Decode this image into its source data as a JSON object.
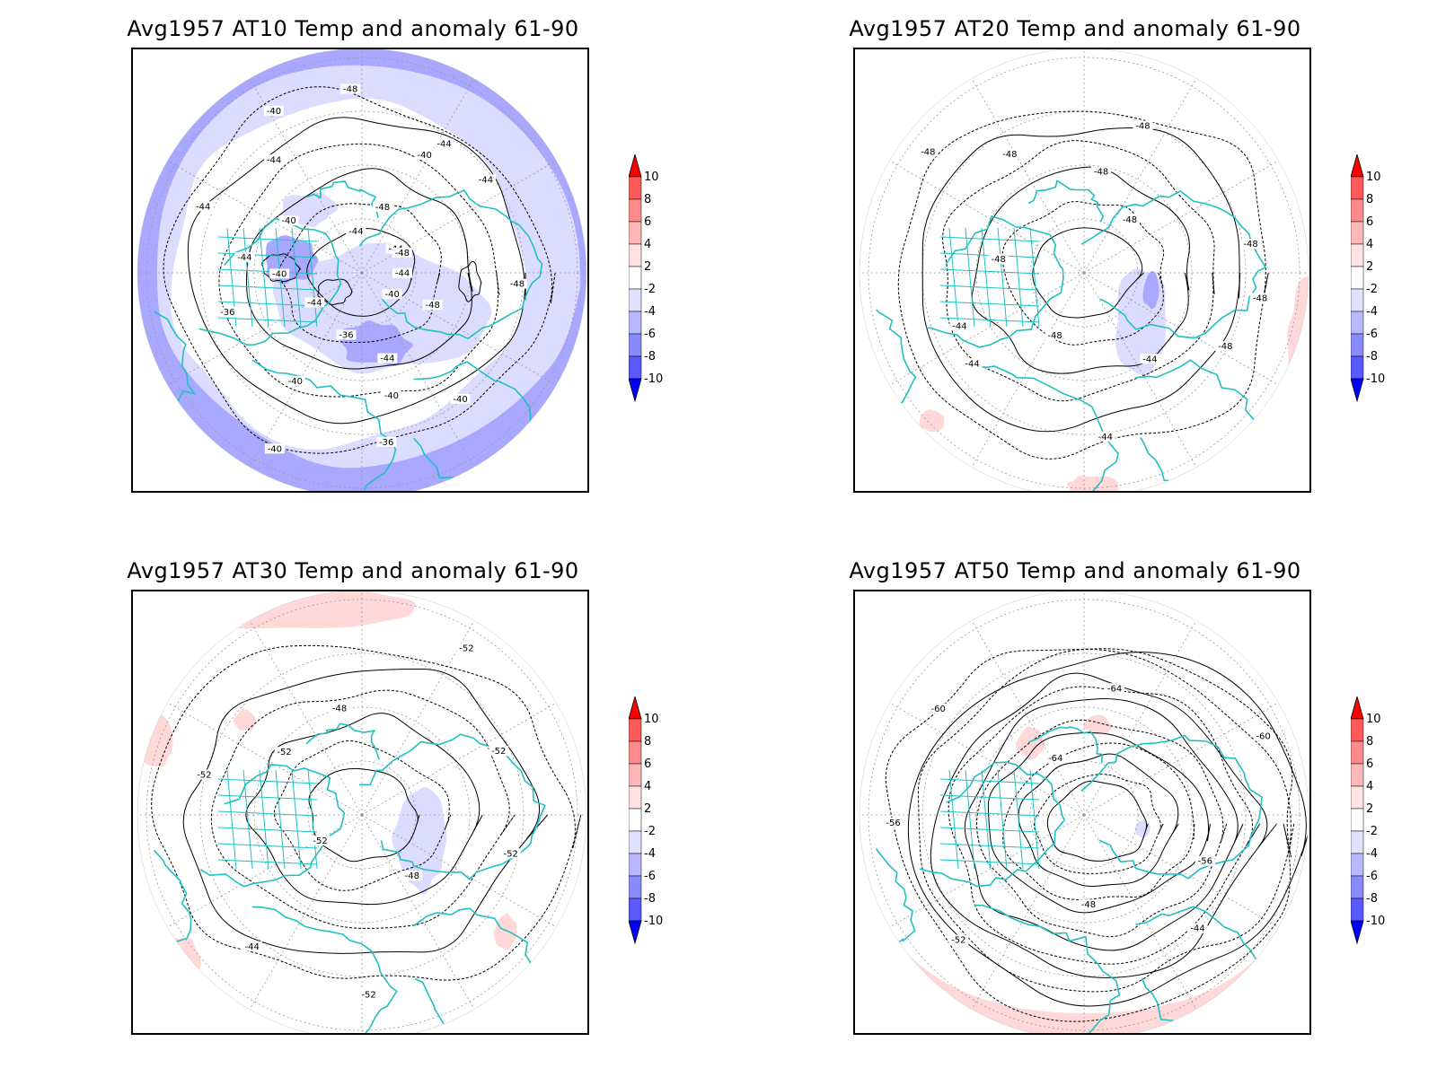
{
  "panels": [
    {
      "title": "Avg1957 AT10 Temp and anomaly 61-90",
      "contour_labels": [
        "-44",
        "-48",
        "-40",
        "-40",
        "-44",
        "-40",
        "-36",
        "-36",
        "-40",
        "-40",
        "-44",
        "-36",
        "-40",
        "-44",
        "-44",
        "-40",
        "-44",
        "-40",
        "-44",
        "-48",
        "-48",
        "-44",
        "-40",
        "-44",
        "-44",
        "-48",
        "-48"
      ]
    },
    {
      "title": "Avg1957 AT20 Temp and anomaly 61-90",
      "contour_labels": [
        "-48",
        "-48",
        "-44",
        "-44",
        "-48",
        "-44",
        "-44",
        "-48",
        "-48",
        "-48",
        "-48",
        "-48",
        "-48",
        "-48"
      ]
    },
    {
      "title": "Avg1957 AT30 Temp and anomaly 61-90",
      "contour_labels": [
        "-52",
        "-48",
        "-52",
        "-44",
        "-52",
        "-52",
        "-52",
        "-48",
        "-52",
        "-52"
      ]
    },
    {
      "title": "Avg1957 AT50 Temp and anomaly 61-90",
      "contour_labels": [
        "-56",
        "-44",
        "-48",
        "-52",
        "-56",
        "-60",
        "-64",
        "-64",
        "-60"
      ]
    }
  ],
  "colorbar": {
    "labels": [
      "10",
      "8",
      "6",
      "4",
      "2",
      "-2",
      "-4",
      "-6",
      "-8",
      "-10"
    ],
    "colors": [
      "#ff0000",
      "#ff5a5a",
      "#ff8a8a",
      "#ffb8b8",
      "#ffe2e2",
      "#ffffff",
      "#e0e0ff",
      "#b8b8ff",
      "#8a8aff",
      "#5a5aff",
      "#0000ff"
    ]
  },
  "colors": {
    "coast": "#20c0c0",
    "contour": "#000000",
    "grid": "#999999",
    "blue_light": "#dcdcff",
    "blue_mid": "#a8a8ff",
    "red_light": "#ffd8d8"
  }
}
